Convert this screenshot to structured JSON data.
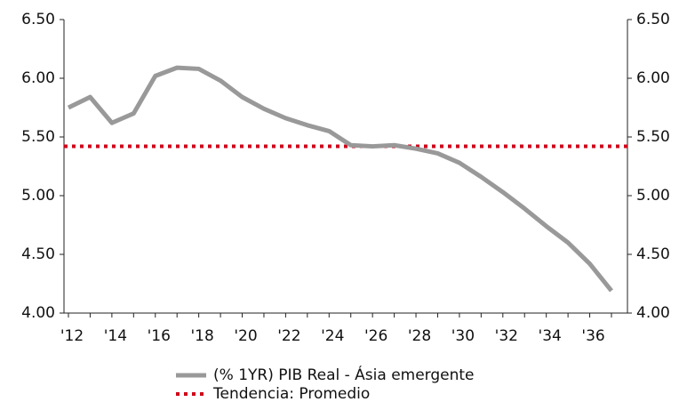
{
  "chart_data": {
    "type": "line",
    "categories": [
      "'12",
      null,
      "'14",
      null,
      "'16",
      null,
      "'18",
      null,
      "'20",
      null,
      "'22",
      null,
      "'24",
      null,
      "'26",
      null,
      "'28",
      null,
      "'30",
      null,
      "'32",
      null,
      "'34",
      null,
      "'36",
      null
    ],
    "series": [
      {
        "name": "(% 1YR) PIB Real - Ásia emergente",
        "color": "#999999",
        "values": [
          5.75,
          5.84,
          5.62,
          5.7,
          6.02,
          6.09,
          6.08,
          5.98,
          5.84,
          5.74,
          5.66,
          5.6,
          5.55,
          5.43,
          5.42,
          5.43,
          5.4,
          5.36,
          5.28,
          5.16,
          5.03,
          4.89,
          4.74,
          4.6,
          4.42,
          4.19
        ]
      }
    ],
    "reference_line": {
      "name": "Tendencia: Promedio",
      "value": 5.42,
      "color": "#d0021b"
    },
    "ylim": [
      4.0,
      6.5
    ],
    "yticks": [
      {
        "value": 4.0,
        "label": "4.00"
      },
      {
        "value": 4.5,
        "label": "4.50"
      },
      {
        "value": 5.0,
        "label": "5.00"
      },
      {
        "value": 5.5,
        "label": "5.50"
      },
      {
        "value": 6.0,
        "label": "6.00"
      },
      {
        "value": 6.5,
        "label": "6.50"
      }
    ],
    "y2lim": [
      4.0,
      6.5
    ],
    "y2ticks": [
      {
        "value": 4.0,
        "label": "4.00"
      },
      {
        "value": 4.5,
        "label": "4.50"
      },
      {
        "value": 5.0,
        "label": "5.00"
      },
      {
        "value": 5.5,
        "label": "5.50"
      },
      {
        "value": 6.0,
        "label": "6.00"
      },
      {
        "value": 6.5,
        "label": "6.50"
      }
    ],
    "grid": false,
    "legend": "bottom"
  }
}
